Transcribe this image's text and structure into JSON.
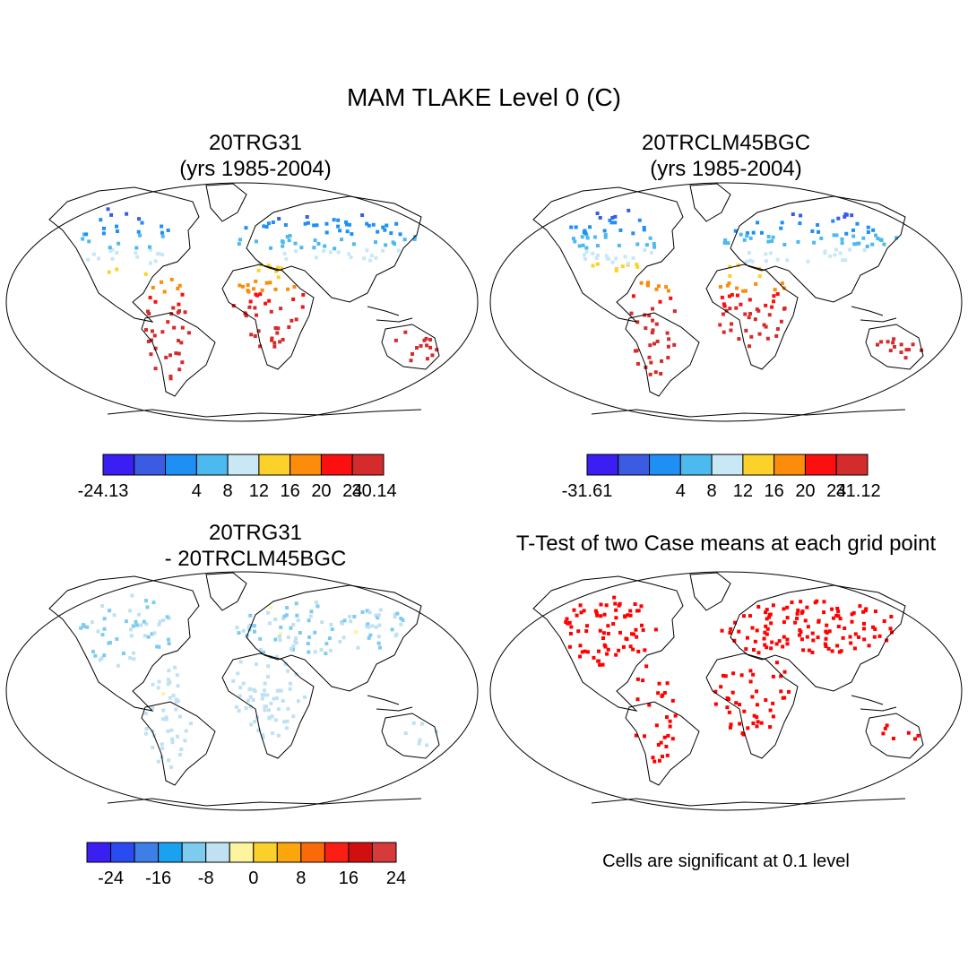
{
  "figure": {
    "title": "MAM TLAKE Level 0 (C)",
    "footnote": "Cells are significant at 0.1 level"
  },
  "panels": [
    {
      "id": "case1",
      "title_line1": "20TRG31",
      "title_line2": "(yrs 1985-2004)",
      "colorbar": {
        "colors": [
          "#3a1ef2",
          "#3b5be3",
          "#1e90f5",
          "#4cb9ef",
          "#c9e7f4",
          "#fcd12a",
          "#fb8c0c",
          "#fb0f0f",
          "#d42c2c"
        ],
        "labels": [
          "-24.13",
          "4",
          "8",
          "12",
          "16",
          "20",
          "24",
          "30.14"
        ]
      }
    },
    {
      "id": "case2",
      "title_line1": "20TRCLM45BGC",
      "title_line2": "(yrs 1985-2004)",
      "colorbar": {
        "colors": [
          "#3a1ef2",
          "#3b5be3",
          "#1e90f5",
          "#4cb9ef",
          "#c9e7f4",
          "#fcd12a",
          "#fb8c0c",
          "#fb0f0f",
          "#d42c2c"
        ],
        "labels": [
          "-31.61",
          "4",
          "8",
          "12",
          "16",
          "20",
          "24",
          "31.12"
        ]
      }
    },
    {
      "id": "diff",
      "title_line1": "20TRG31",
      "title_line2": "- 20TRCLM45BGC",
      "colorbar": {
        "colors": [
          "#3a1ef2",
          "#2a4bf0",
          "#3f7ee6",
          "#1aa2f0",
          "#7ecbf0",
          "#bfe1f1",
          "#fdf4a0",
          "#fbd02a",
          "#fba60c",
          "#fb6a0a",
          "#fb1e14",
          "#d20f0f",
          "#d73a3a"
        ],
        "labels": [
          "-24",
          "-16",
          "-8",
          "0",
          "8",
          "16",
          "24"
        ]
      }
    },
    {
      "id": "ttest",
      "title_line1": "T-Test of two Case means at each grid point",
      "colors": {
        "significant": "#ff0000"
      }
    }
  ]
}
